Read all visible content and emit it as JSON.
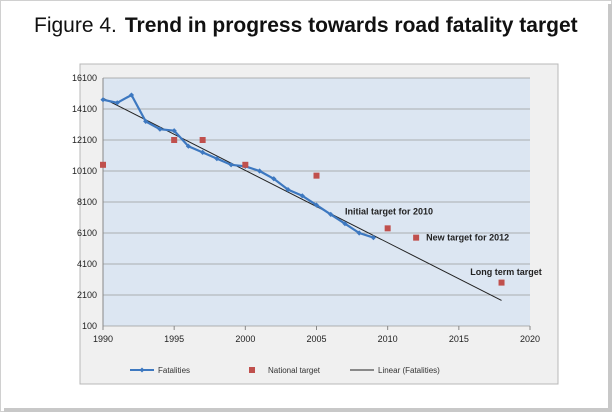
{
  "page": {
    "title_prefix": "Figure 4.",
    "title_main": "Trend in progress towards road fatality target"
  },
  "chart_data": {
    "type": "line",
    "title": "Trend in progress towards road fatality target",
    "xlabel": "",
    "ylabel": "",
    "xlim": [
      1990,
      2020
    ],
    "ylim": [
      100,
      16100
    ],
    "x_ticks": [
      1990,
      1995,
      2000,
      2005,
      2010,
      2015,
      2020
    ],
    "y_ticks": [
      100,
      2100,
      4100,
      6100,
      8100,
      10100,
      12100,
      14100,
      16100
    ],
    "grid": true,
    "legend_position": "bottom",
    "series": [
      {
        "name": "Fatalities",
        "kind": "line-markers",
        "color": "#3d78c0",
        "x": [
          1990,
          1991,
          1992,
          1993,
          1994,
          1995,
          1996,
          1997,
          1998,
          1999,
          2000,
          2001,
          2002,
          2003,
          2004,
          2005,
          2006,
          2007,
          2008,
          2009
        ],
        "y": [
          14700,
          14500,
          15000,
          13300,
          12800,
          12700,
          11700,
          11300,
          10900,
          10500,
          10400,
          10100,
          9600,
          8900,
          8500,
          7900,
          7300,
          6700,
          6100,
          5800
        ]
      },
      {
        "name": "National target",
        "kind": "markers",
        "color": "#c0504d",
        "x": [
          1990,
          1995,
          1997,
          2000,
          2005,
          2010,
          2012,
          2018
        ],
        "y": [
          10500,
          12100,
          12100,
          10500,
          9800,
          6400,
          5800,
          2900
        ]
      },
      {
        "name": "Linear (Fatalities)",
        "kind": "trendline",
        "color": "#222222",
        "x": [
          1990,
          2018
        ],
        "y": [
          14800,
          1750
        ]
      }
    ],
    "annotations": [
      {
        "text": "Initial target for 2010",
        "x": 2007,
        "y": 7500
      },
      {
        "text": "New target for 2012",
        "x": 2012.7,
        "y": 5800
      },
      {
        "text": "Long term target",
        "x": 2015.8,
        "y": 3600
      }
    ]
  }
}
